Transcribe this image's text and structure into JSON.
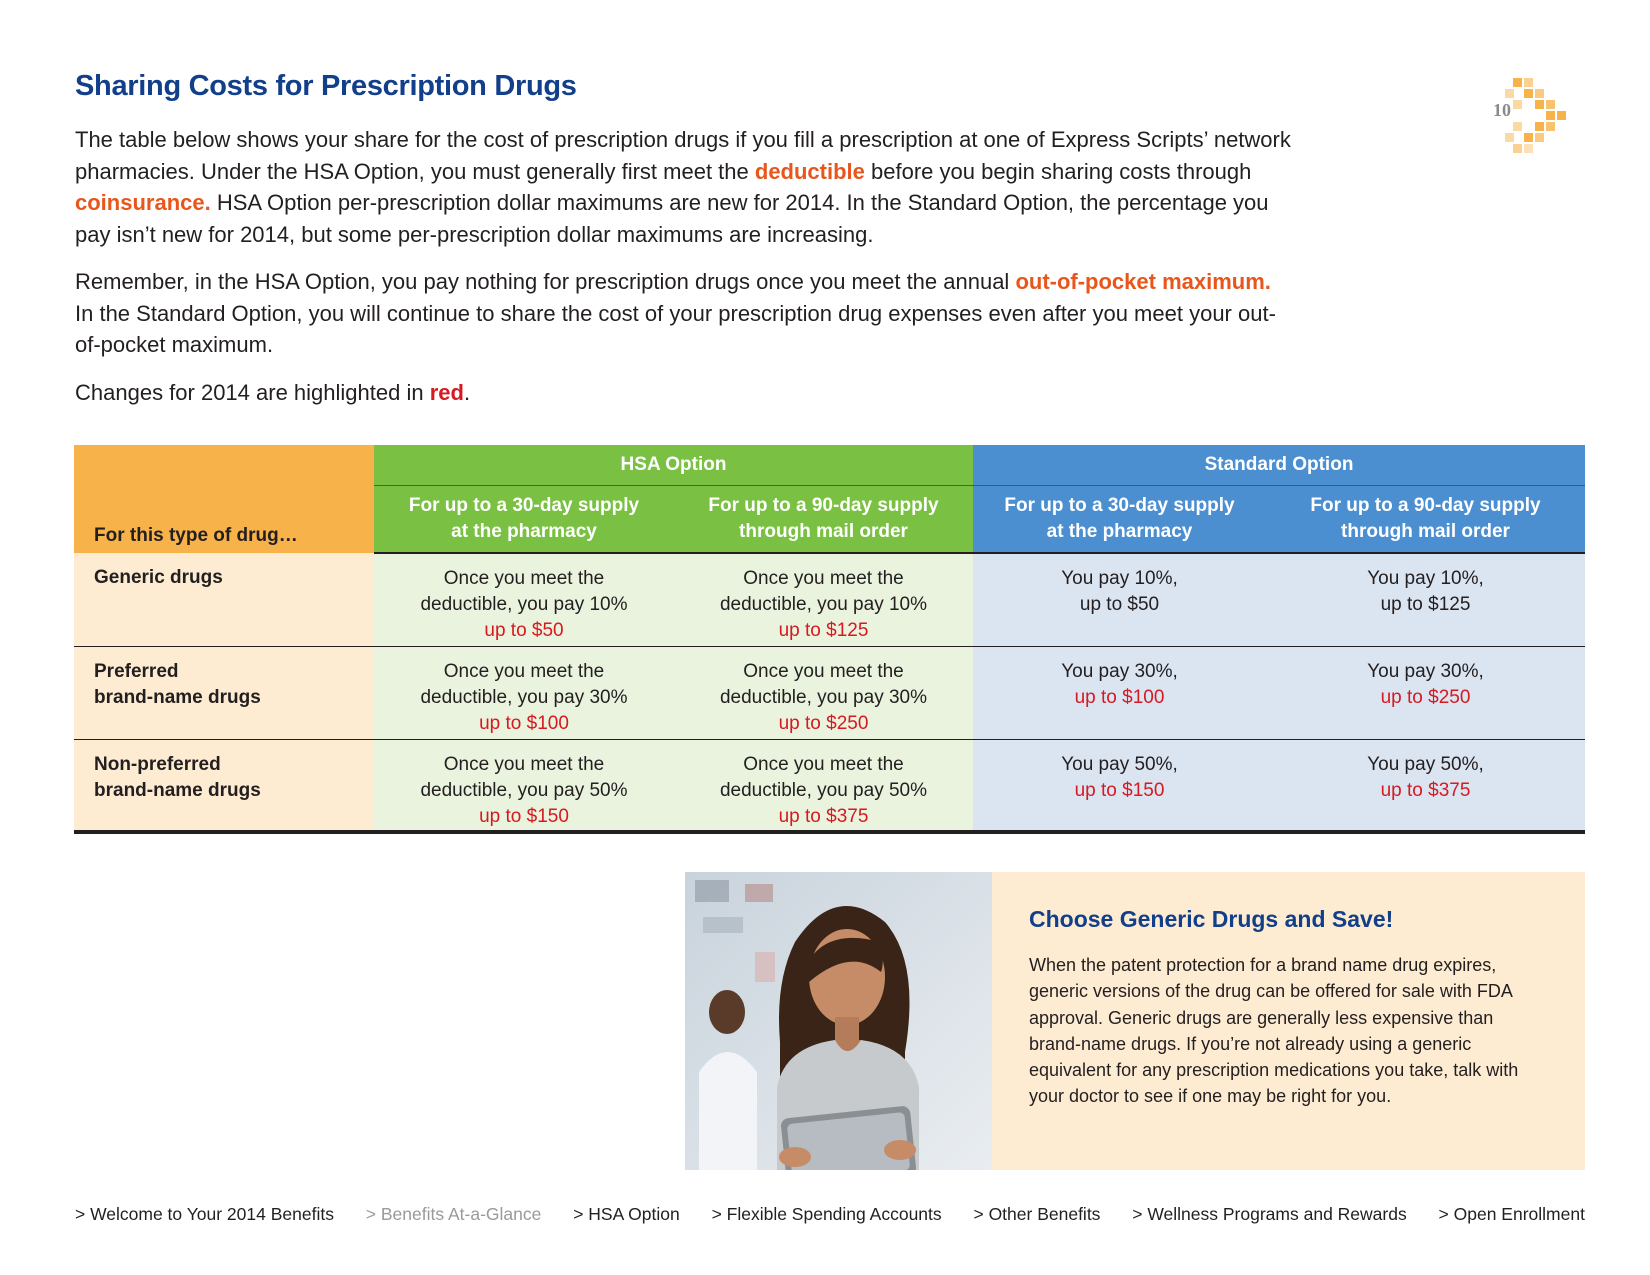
{
  "page": {
    "title": "Sharing Costs for Prescription Drugs",
    "page_number": "10"
  },
  "intro": {
    "p1_a": "The table below shows your share for the cost of prescription drugs if you fill a prescription at one of Express Scripts’ network pharmacies. Under the HSA Option, you must generally first meet the ",
    "p1_deductible": "deductible",
    "p1_b": " before you begin sharing costs through ",
    "p1_coinsurance": "coinsurance.",
    "p1_c": " HSA Option per-prescription dollar maximums are new for 2014. In the Standard Option, the percentage you pay isn’t new for 2014, but some per-prescription dollar maximums are increasing.",
    "p2_a": "Remember, in the HSA Option, you pay nothing for prescription drugs once you meet the annual ",
    "p2_oop": "out-of-pocket maximum.",
    "p2_b": " In the Standard Option, you will continue to share the cost of your prescription drug expenses even after you meet your out-of-pocket maximum.",
    "p3_a": "Changes for 2014 are highlighted in ",
    "p3_red": "red",
    "p3_b": "."
  },
  "table": {
    "drug_header": "For this type of drug…",
    "hsa_header": "HSA Option",
    "std_header": "Standard Option",
    "sub_30": [
      "For up to a 30-day supply",
      "at the pharmacy"
    ],
    "sub_90": [
      "For up to a 90-day supply",
      "through mail order"
    ],
    "rows": [
      {
        "drug": [
          "Generic drugs"
        ],
        "hsa_30": [
          "Once you meet the",
          "deductible, you pay 10%",
          "up to $50"
        ],
        "hsa_90": [
          "Once you meet the",
          "deductible, you pay 10%",
          "up to $125"
        ],
        "std_30": [
          "You pay 10%,",
          "up to $50"
        ],
        "std_90": [
          "You pay 10%,",
          "up to $125"
        ]
      },
      {
        "drug": [
          "Preferred",
          "brand-name drugs"
        ],
        "hsa_30": [
          "Once you meet the",
          "deductible, you pay 30%",
          "up to $100"
        ],
        "hsa_90": [
          "Once you meet the",
          "deductible, you pay 30%",
          "up to $250"
        ],
        "std_30": [
          "You pay 30%,",
          "up to $100"
        ],
        "std_90": [
          "You pay 30%,",
          "up to $250"
        ]
      },
      {
        "drug": [
          "Non-preferred",
          "brand-name drugs"
        ],
        "hsa_30": [
          "Once you meet the",
          "deductible, you pay 50%",
          "up to $150"
        ],
        "hsa_90": [
          "Once you meet the",
          "deductible, you pay 50%",
          "up to $375"
        ],
        "std_30": [
          "You pay 50%,",
          "up to $150"
        ],
        "std_90": [
          "You pay 50%,",
          "up to $375"
        ]
      }
    ]
  },
  "promo": {
    "title": "Choose Generic Drugs and Save!",
    "body": "When the patent protection for a brand name drug expires, generic versions of the drug can be offered for sale with FDA approval. Generic drugs are generally less expensive than brand-name drugs. If you’re not already using a generic equivalent for any prescription medications you take, talk with your doctor to see if one may be right for you."
  },
  "footer_nav": [
    "> Welcome to Your 2014 Benefits",
    "> Benefits At-a-Glance",
    "> HSA Option",
    "> Flexible Spending Accounts",
    "> Other Benefits",
    "> Wellness Programs and Rewards",
    "> Open Enrollment"
  ],
  "colors": {
    "title_blue": "#123f8a",
    "highlight_orange": "#e8561c",
    "change_red": "#d71920",
    "hsa_green": "#7ac143",
    "standard_blue": "#4c8fd0",
    "drug_orange": "#f7b34a"
  }
}
